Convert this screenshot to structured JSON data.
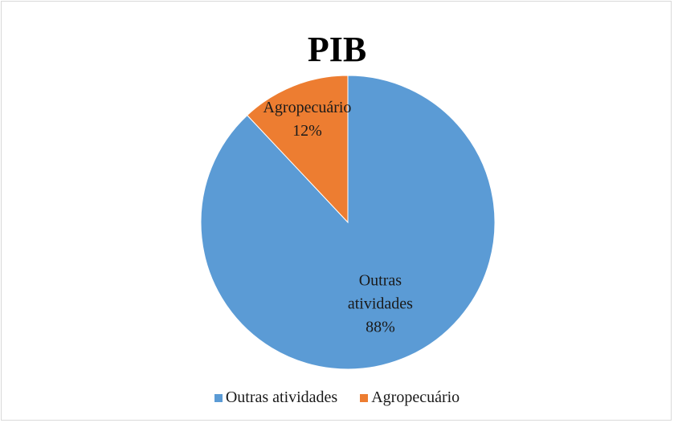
{
  "chart_data": {
    "type": "pie",
    "title": "PIB",
    "categories": [
      "Outras atividades",
      "Agropecuário"
    ],
    "values": [
      88,
      12
    ],
    "value_labels": [
      "88%",
      "12%"
    ],
    "colors": [
      "#5b9bd5",
      "#ed7d31"
    ],
    "legend": "bottom"
  }
}
